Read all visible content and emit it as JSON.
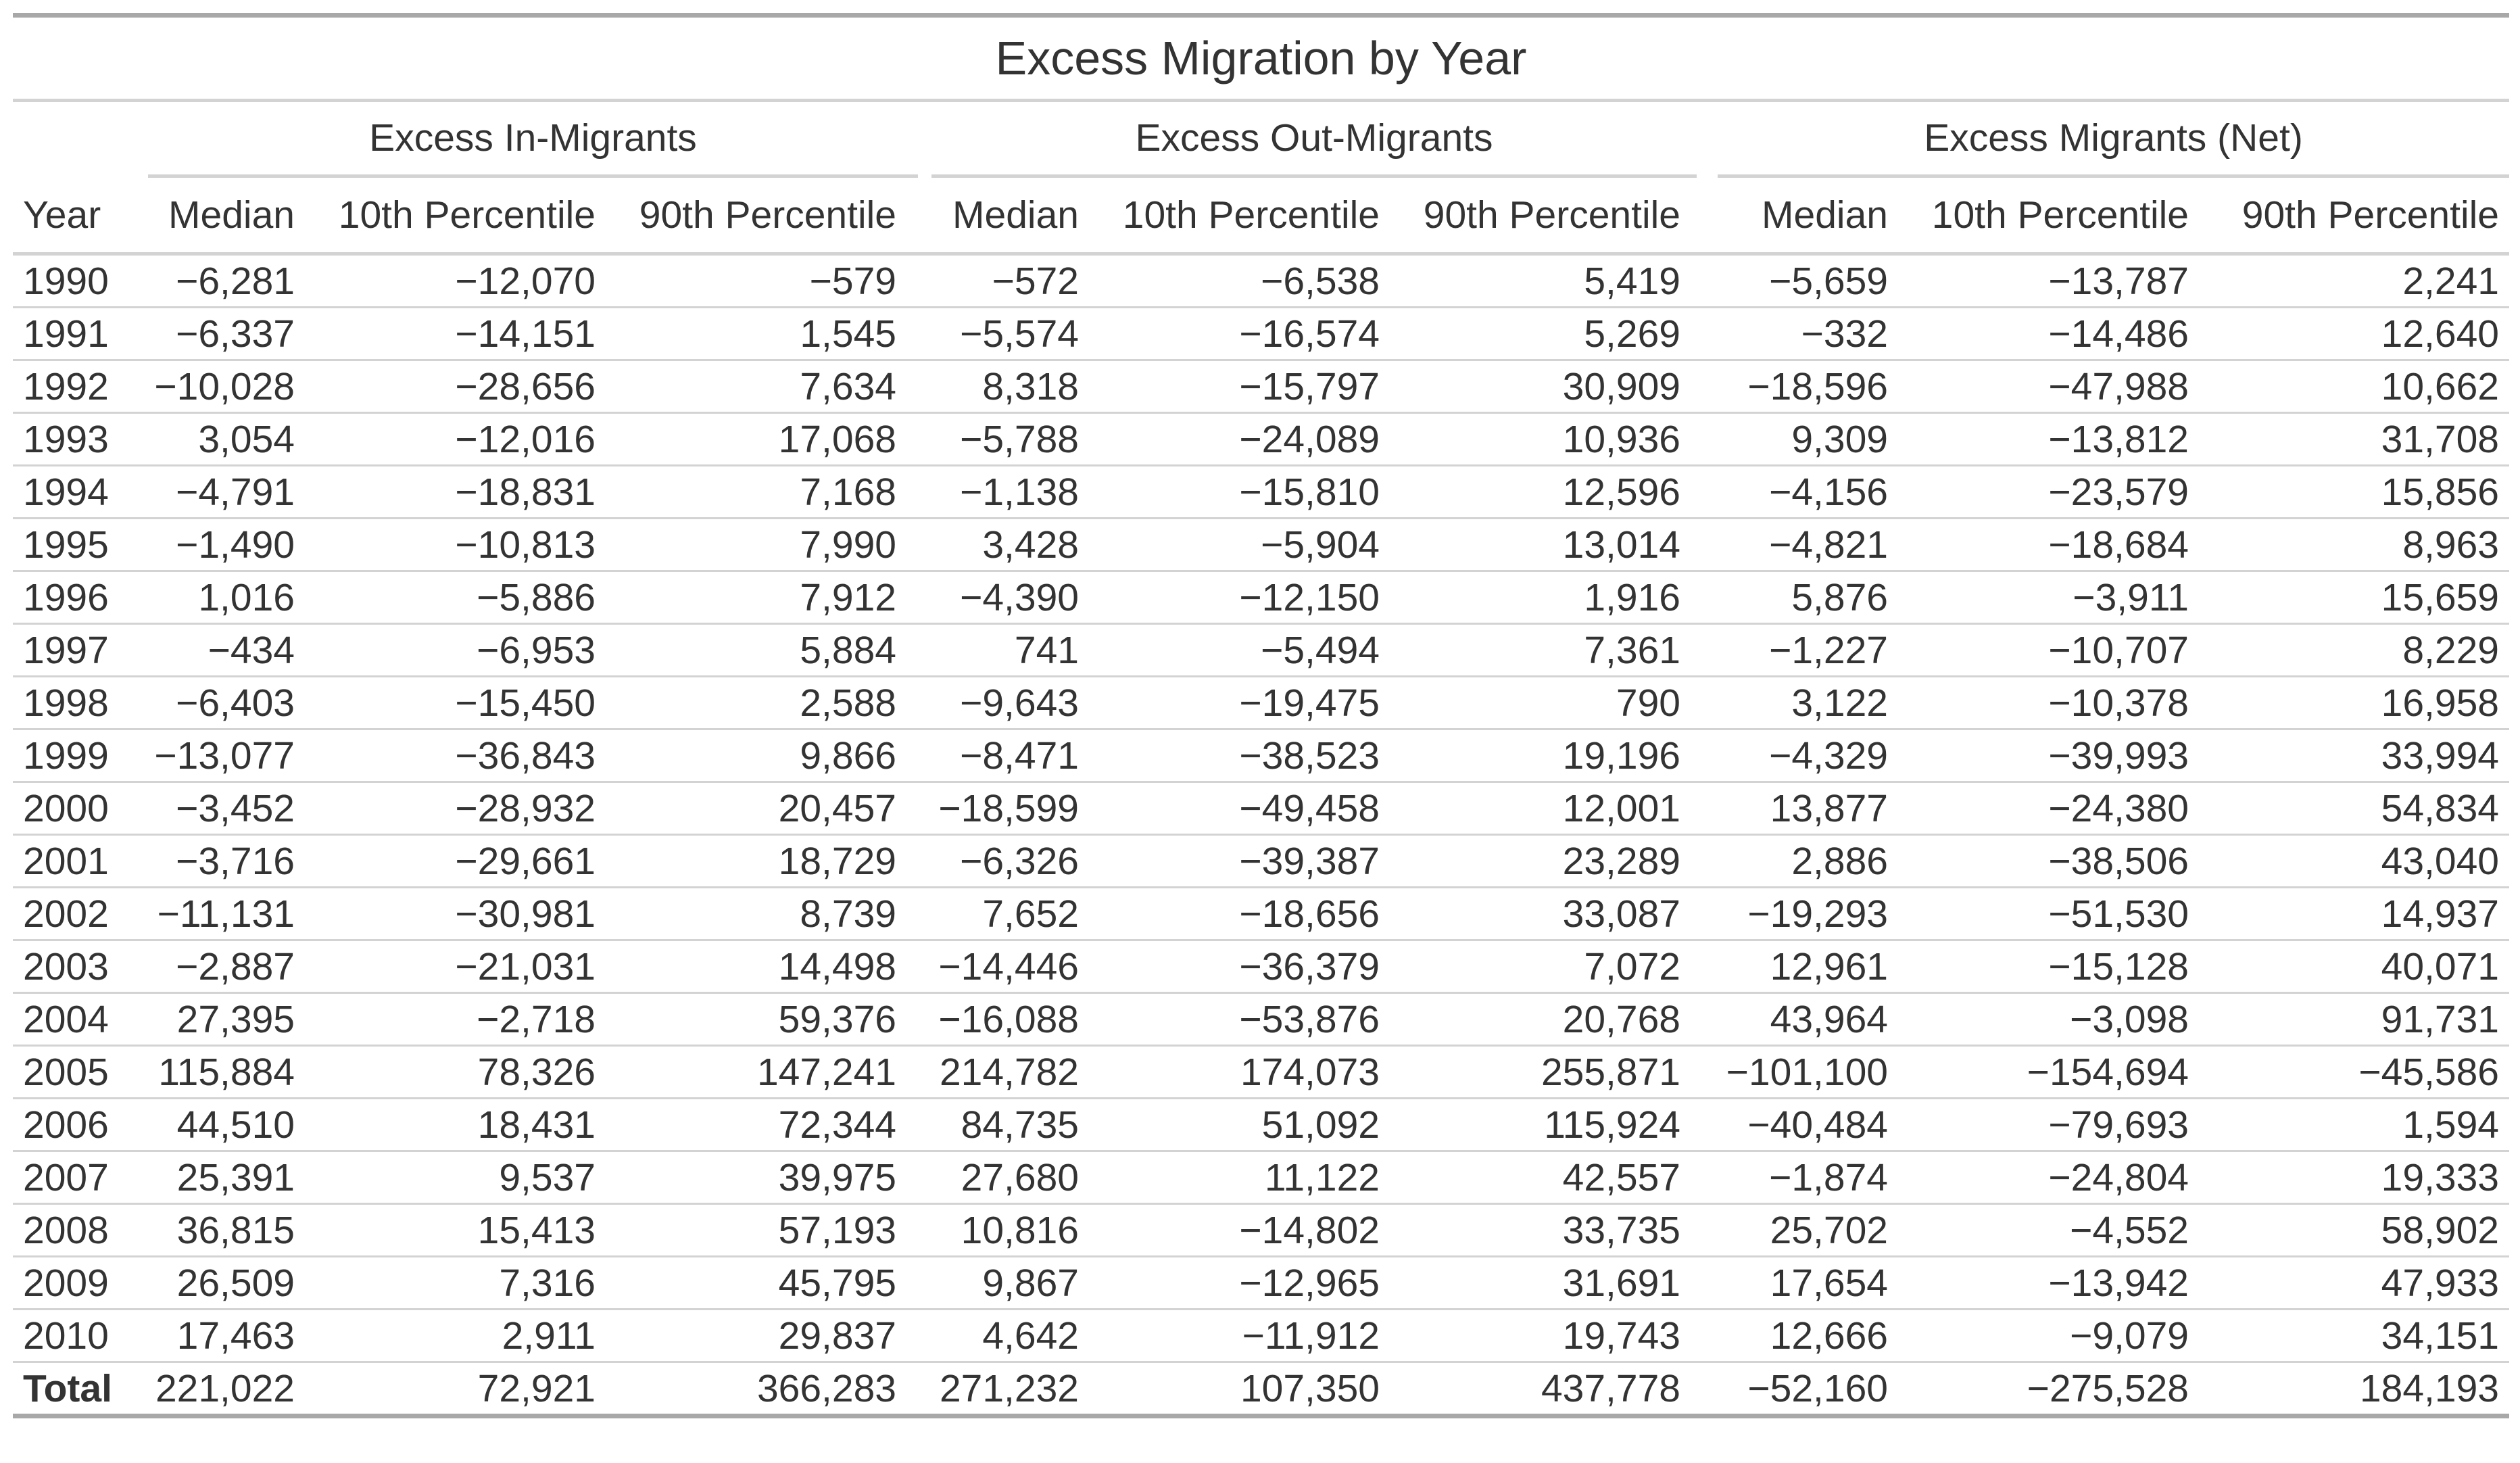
{
  "title": "Excess Migration by Year",
  "spanners": [
    "Excess In-Migrants",
    "Excess Out-Migrants",
    "Excess Migrants (Net)"
  ],
  "columns": [
    "Year",
    "Median",
    "10th Percentile",
    "90th Percentile",
    "Median",
    "10th Percentile",
    "90th Percentile",
    "Median",
    "10th Percentile",
    "90th Percentile"
  ],
  "rows": [
    [
      "1990",
      "−6,281",
      "−12,070",
      "−579",
      "−572",
      "−6,538",
      "5,419",
      "−5,659",
      "−13,787",
      "2,241"
    ],
    [
      "1991",
      "−6,337",
      "−14,151",
      "1,545",
      "−5,574",
      "−16,574",
      "5,269",
      "−332",
      "−14,486",
      "12,640"
    ],
    [
      "1992",
      "−10,028",
      "−28,656",
      "7,634",
      "8,318",
      "−15,797",
      "30,909",
      "−18,596",
      "−47,988",
      "10,662"
    ],
    [
      "1993",
      "3,054",
      "−12,016",
      "17,068",
      "−5,788",
      "−24,089",
      "10,936",
      "9,309",
      "−13,812",
      "31,708"
    ],
    [
      "1994",
      "−4,791",
      "−18,831",
      "7,168",
      "−1,138",
      "−15,810",
      "12,596",
      "−4,156",
      "−23,579",
      "15,856"
    ],
    [
      "1995",
      "−1,490",
      "−10,813",
      "7,990",
      "3,428",
      "−5,904",
      "13,014",
      "−4,821",
      "−18,684",
      "8,963"
    ],
    [
      "1996",
      "1,016",
      "−5,886",
      "7,912",
      "−4,390",
      "−12,150",
      "1,916",
      "5,876",
      "−3,911",
      "15,659"
    ],
    [
      "1997",
      "−434",
      "−6,953",
      "5,884",
      "741",
      "−5,494",
      "7,361",
      "−1,227",
      "−10,707",
      "8,229"
    ],
    [
      "1998",
      "−6,403",
      "−15,450",
      "2,588",
      "−9,643",
      "−19,475",
      "790",
      "3,122",
      "−10,378",
      "16,958"
    ],
    [
      "1999",
      "−13,077",
      "−36,843",
      "9,866",
      "−8,471",
      "−38,523",
      "19,196",
      "−4,329",
      "−39,993",
      "33,994"
    ],
    [
      "2000",
      "−3,452",
      "−28,932",
      "20,457",
      "−18,599",
      "−49,458",
      "12,001",
      "13,877",
      "−24,380",
      "54,834"
    ],
    [
      "2001",
      "−3,716",
      "−29,661",
      "18,729",
      "−6,326",
      "−39,387",
      "23,289",
      "2,886",
      "−38,506",
      "43,040"
    ],
    [
      "2002",
      "−11,131",
      "−30,981",
      "8,739",
      "7,652",
      "−18,656",
      "33,087",
      "−19,293",
      "−51,530",
      "14,937"
    ],
    [
      "2003",
      "−2,887",
      "−21,031",
      "14,498",
      "−14,446",
      "−36,379",
      "7,072",
      "12,961",
      "−15,128",
      "40,071"
    ],
    [
      "2004",
      "27,395",
      "−2,718",
      "59,376",
      "−16,088",
      "−53,876",
      "20,768",
      "43,964",
      "−3,098",
      "91,731"
    ],
    [
      "2005",
      "115,884",
      "78,326",
      "147,241",
      "214,782",
      "174,073",
      "255,871",
      "−101,100",
      "−154,694",
      "−45,586"
    ],
    [
      "2006",
      "44,510",
      "18,431",
      "72,344",
      "84,735",
      "51,092",
      "115,924",
      "−40,484",
      "−79,693",
      "1,594"
    ],
    [
      "2007",
      "25,391",
      "9,537",
      "39,975",
      "27,680",
      "11,122",
      "42,557",
      "−1,874",
      "−24,804",
      "19,333"
    ],
    [
      "2008",
      "36,815",
      "15,413",
      "57,193",
      "10,816",
      "−14,802",
      "33,735",
      "25,702",
      "−4,552",
      "58,902"
    ],
    [
      "2009",
      "26,509",
      "7,316",
      "45,795",
      "9,867",
      "−12,965",
      "31,691",
      "17,654",
      "−13,942",
      "47,933"
    ],
    [
      "2010",
      "17,463",
      "2,911",
      "29,837",
      "4,642",
      "−11,912",
      "19,743",
      "12,666",
      "−9,079",
      "34,151"
    ]
  ],
  "total": [
    "Total",
    "221,022",
    "72,921",
    "366,283",
    "271,232",
    "107,350",
    "437,778",
    "−52,160",
    "−275,528",
    "184,193"
  ]
}
